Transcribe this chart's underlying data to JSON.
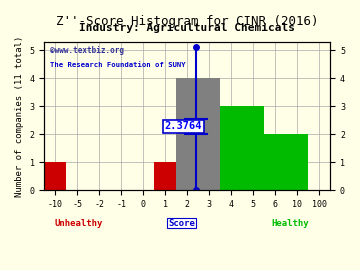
{
  "title": "Z''-Score Histogram for CINR (2016)",
  "subtitle": "Industry: Agricultural Chemicals",
  "watermark1": "©www.textbiz.org",
  "watermark2": "The Research Foundation of SUNY",
  "ylabel": "Number of companies (11 total)",
  "bars": [
    {
      "x_idx": 0,
      "span": 1,
      "height": 1,
      "color": "#cc0000"
    },
    {
      "x_idx": 5,
      "span": 1,
      "height": 1,
      "color": "#cc0000"
    },
    {
      "x_idx": 6,
      "span": 2,
      "height": 4,
      "color": "#808080"
    },
    {
      "x_idx": 8,
      "span": 2,
      "height": 3,
      "color": "#00bb00"
    },
    {
      "x_idx": 10,
      "span": 2,
      "height": 2,
      "color": "#00bb00"
    }
  ],
  "xtick_labels": [
    "-10",
    "-5",
    "-2",
    "-1",
    "0",
    "1",
    "2",
    "3",
    "4",
    "5",
    "6",
    "10",
    "100"
  ],
  "xtick_positions": [
    0,
    1,
    2,
    3,
    4,
    5,
    6,
    7,
    8,
    9,
    10,
    11,
    12
  ],
  "yticks": [
    0,
    1,
    2,
    3,
    4,
    5
  ],
  "ylim": [
    0,
    5.3
  ],
  "xlim": [
    -0.5,
    12.5
  ],
  "zscore_x": 6.3764,
  "zscore_label": "2.3764",
  "zscore_ymin": 0.0,
  "zscore_ymax": 5.1,
  "zscore_mid": 2.55,
  "zscore_line_color": "#0000cc",
  "unhealthy_label": "Unhealthy",
  "unhealthy_color": "#cc0000",
  "healthy_label": "Healthy",
  "healthy_color": "#00bb00",
  "score_label": "Score",
  "score_color": "#0000cc",
  "bg_color": "#ffffe8",
  "grid_color": "#aaaaaa",
  "title_fontsize": 9,
  "subtitle_fontsize": 8,
  "label_fontsize": 6.5,
  "tick_fontsize": 6,
  "annotation_fontsize": 7.5
}
